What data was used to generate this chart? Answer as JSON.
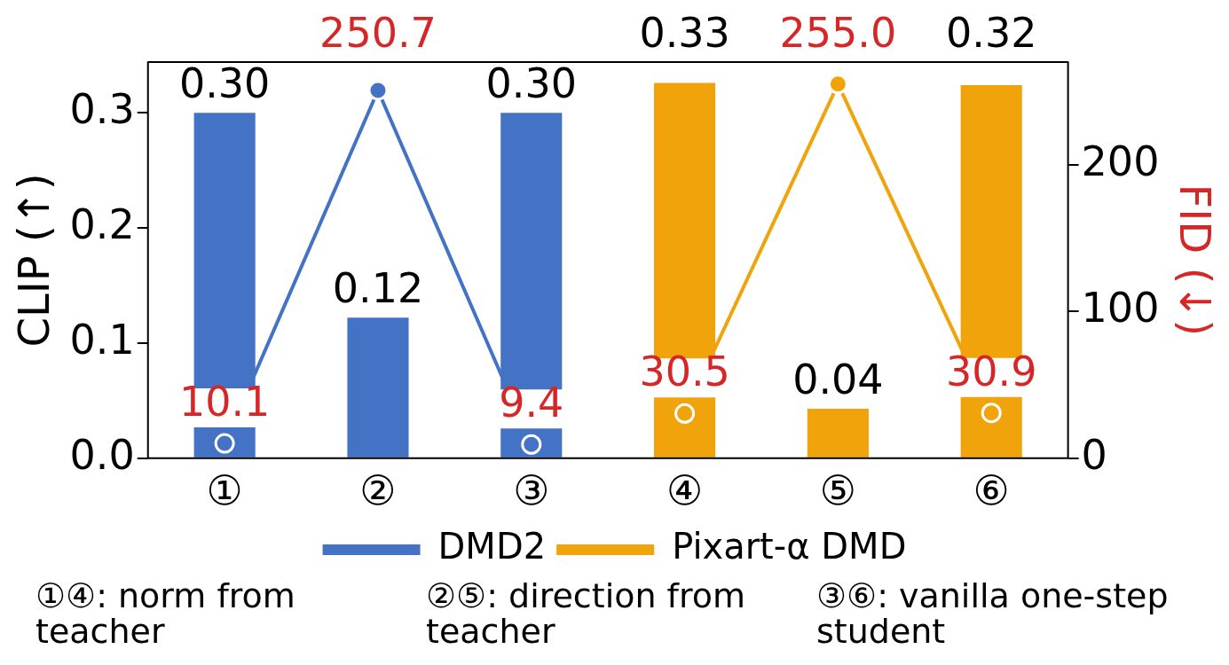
{
  "chart_data": {
    "type": "bar",
    "categories": [
      "①",
      "②",
      "③",
      "④",
      "⑤",
      "⑥"
    ],
    "series": [
      {
        "colors": [
          "#4472c4",
          "#4472c4",
          "#4472c4",
          "#f0a30a",
          "#f0a30a",
          "#f0a30a"
        ],
        "values": [
          0.3,
          0.122,
          0.3,
          0.326,
          0.043,
          0.324
        ],
        "value_labels": [
          "0.30",
          "0.12",
          "0.30",
          "0.33",
          "0.04",
          "0.32"
        ]
      },
      {
        "type": "line",
        "name": "DMD2",
        "color": "#4472c4",
        "axis": "y2",
        "values": [
          10.1,
          250.7,
          9.4,
          null,
          null,
          null
        ],
        "value_labels": [
          "10.1",
          "250.7",
          "9.4",
          null,
          null,
          null
        ]
      },
      {
        "type": "line",
        "name": "Pixart-α DMD",
        "color": "#f0a30a",
        "axis": "y2",
        "values": [
          null,
          null,
          null,
          30.5,
          255.0,
          30.9
        ],
        "value_labels": [
          null,
          null,
          null,
          "30.5",
          "255.0",
          "30.9"
        ]
      }
    ],
    "ylim": [
      0,
      0.344
    ],
    "yticks": [
      {
        "value": 0,
        "label": "0.0"
      },
      {
        "value": 0.1,
        "label": "0.1"
      },
      {
        "value": 0.2,
        "label": "0.2"
      },
      {
        "value": 0.3,
        "label": "0.3"
      }
    ],
    "y2lim": [
      0,
      270
    ],
    "y2ticks": [
      0,
      100,
      200
    ],
    "ylabel": "CLIP (↑)",
    "y2label": "FID (↓)",
    "legend": "bottom",
    "marker": "circle",
    "annotations": [
      "①④: norm from teacher",
      "②⑤: direction from teacher",
      "③⑥: vanilla one-step student"
    ]
  }
}
